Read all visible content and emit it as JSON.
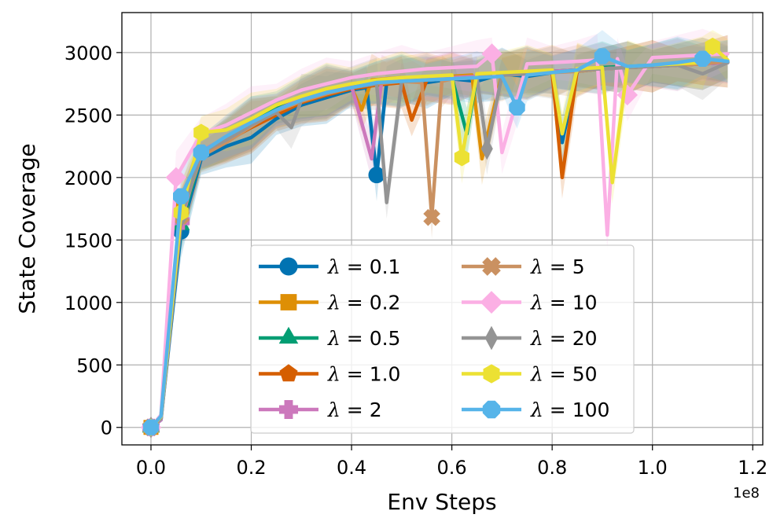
{
  "chart_data": {
    "type": "line",
    "title": "",
    "xlabel": "Env Steps",
    "ylabel": "State Coverage",
    "x_offset_label": "1e8",
    "xlim": [
      -0.058,
      1.22
    ],
    "ylim": [
      -140,
      3320
    ],
    "xticks": [
      0.0,
      0.2,
      0.4,
      0.6,
      0.8,
      1.0,
      1.2
    ],
    "xtick_labels": [
      "0.0",
      "0.2",
      "0.4",
      "0.6",
      "0.8",
      "1.0",
      "1.2"
    ],
    "yticks": [
      0,
      500,
      1000,
      1500,
      2000,
      2500,
      3000
    ],
    "ytick_labels": [
      "0",
      "500",
      "1000",
      "1500",
      "2000",
      "2500",
      "3000"
    ],
    "grid": true,
    "legend_position": "lower-center",
    "series": [
      {
        "name": "λ=0.1",
        "label_prefix": "λ",
        "label_value": "0.1",
        "color": "#0173b2",
        "marker": "circle",
        "x": [
          0.0,
          0.02,
          0.06,
          0.1,
          0.15,
          0.2,
          0.25,
          0.3,
          0.35,
          0.4,
          0.43,
          0.45,
          0.47,
          0.5,
          0.55,
          0.6,
          0.65,
          0.7,
          0.75,
          0.8,
          0.82,
          0.85,
          0.9,
          0.95,
          1.0,
          1.05,
          1.1,
          1.15
        ],
        "y": [
          0,
          60,
          1570,
          2150,
          2250,
          2320,
          2470,
          2580,
          2640,
          2700,
          2720,
          2020,
          2760,
          2780,
          2760,
          2790,
          2770,
          2830,
          2810,
          2840,
          2280,
          2850,
          2870,
          2880,
          2890,
          2900,
          2910,
          2920
        ],
        "marker_x": [
          0.0,
          0.06,
          0.45
        ]
      },
      {
        "name": "λ=0.2",
        "label_prefix": "λ",
        "label_value": "0.2",
        "color": "#de8f05",
        "marker": "square",
        "x": [
          0.0,
          0.02,
          0.06,
          0.1,
          0.15,
          0.2,
          0.25,
          0.3,
          0.35,
          0.4,
          0.42,
          0.44,
          0.47,
          0.5,
          0.55,
          0.6,
          0.64,
          0.66,
          0.7,
          0.75,
          0.8,
          0.85,
          0.9,
          0.95,
          1.0,
          1.05,
          1.1,
          1.15
        ],
        "y": [
          0,
          80,
          1760,
          2200,
          2300,
          2420,
          2520,
          2620,
          2680,
          2720,
          2540,
          2780,
          2790,
          2800,
          2790,
          2810,
          2820,
          2150,
          2830,
          2840,
          2850,
          2860,
          2870,
          2880,
          2890,
          2900,
          2910,
          2930
        ],
        "marker_x": [
          0.0,
          0.06
        ]
      },
      {
        "name": "λ=0.5",
        "label_prefix": "λ",
        "label_value": "0.5",
        "color": "#029e73",
        "marker": "triangle",
        "x": [
          0.0,
          0.02,
          0.06,
          0.1,
          0.15,
          0.2,
          0.25,
          0.3,
          0.35,
          0.4,
          0.45,
          0.5,
          0.55,
          0.6,
          0.63,
          0.65,
          0.7,
          0.75,
          0.8,
          0.85,
          0.9,
          0.95,
          1.0,
          1.05,
          1.1,
          1.15
        ],
        "y": [
          0,
          70,
          1620,
          2180,
          2310,
          2440,
          2560,
          2640,
          2700,
          2730,
          2760,
          2780,
          2790,
          2800,
          2350,
          2810,
          2820,
          2840,
          2850,
          2860,
          2880,
          2890,
          2900,
          2910,
          2920,
          2930
        ],
        "marker_x": [
          0.0,
          0.06
        ]
      },
      {
        "name": "λ=1.0",
        "label_prefix": "λ",
        "label_value": "1.0",
        "color": "#d55e00",
        "marker": "pentagon",
        "x": [
          0.0,
          0.02,
          0.06,
          0.1,
          0.15,
          0.2,
          0.25,
          0.3,
          0.35,
          0.4,
          0.45,
          0.5,
          0.52,
          0.55,
          0.6,
          0.65,
          0.7,
          0.75,
          0.8,
          0.82,
          0.85,
          0.9,
          0.95,
          1.0,
          1.05,
          1.1,
          1.15
        ],
        "y": [
          0,
          90,
          1700,
          2190,
          2290,
          2400,
          2500,
          2600,
          2660,
          2710,
          2740,
          2760,
          2460,
          2780,
          2790,
          2800,
          2820,
          2830,
          2840,
          2000,
          2860,
          2870,
          2880,
          2890,
          2900,
          2910,
          2930
        ],
        "marker_x": [
          0.0,
          0.06
        ]
      },
      {
        "name": "λ=2",
        "label_prefix": "λ",
        "label_value": "2",
        "color": "#cc78bc",
        "marker": "plus",
        "x": [
          0.0,
          0.02,
          0.06,
          0.1,
          0.15,
          0.2,
          0.25,
          0.3,
          0.35,
          0.4,
          0.44,
          0.46,
          0.5,
          0.55,
          0.6,
          0.65,
          0.7,
          0.75,
          0.8,
          0.85,
          0.9,
          0.95,
          1.0,
          1.05,
          1.1,
          1.15
        ],
        "y": [
          0,
          60,
          1650,
          2210,
          2320,
          2430,
          2540,
          2630,
          2690,
          2730,
          2150,
          2770,
          2780,
          2790,
          2800,
          2810,
          2830,
          2840,
          2850,
          2860,
          2870,
          2880,
          2890,
          2900,
          2910,
          2920
        ],
        "marker_x": [
          0.0,
          0.06
        ]
      },
      {
        "name": "λ=5",
        "label_prefix": "λ",
        "label_value": "5",
        "color": "#ca9161",
        "marker": "x",
        "x": [
          0.0,
          0.02,
          0.06,
          0.1,
          0.15,
          0.2,
          0.25,
          0.3,
          0.35,
          0.4,
          0.45,
          0.5,
          0.54,
          0.56,
          0.58,
          0.6,
          0.65,
          0.7,
          0.75,
          0.8,
          0.85,
          0.9,
          0.95,
          1.0,
          1.05,
          1.1,
          1.15
        ],
        "y": [
          0,
          75,
          1690,
          2170,
          2280,
          2410,
          2530,
          2610,
          2670,
          2720,
          2750,
          2770,
          2760,
          1680,
          2770,
          2790,
          2800,
          2820,
          2830,
          2840,
          2850,
          2870,
          2880,
          2890,
          2900,
          2910,
          2930
        ],
        "marker_x": [
          0.0,
          0.06,
          0.56
        ]
      },
      {
        "name": "λ=10",
        "label_prefix": "λ",
        "label_value": "10",
        "color": "#fbafe4",
        "marker": "diamond",
        "x": [
          0.0,
          0.02,
          0.05,
          0.1,
          0.15,
          0.2,
          0.25,
          0.3,
          0.35,
          0.4,
          0.45,
          0.5,
          0.55,
          0.6,
          0.65,
          0.68,
          0.7,
          0.75,
          0.8,
          0.85,
          0.89,
          0.91,
          0.93,
          0.95,
          1.0,
          1.05,
          1.1,
          1.15
        ],
        "y": [
          0,
          100,
          2000,
          2350,
          2420,
          2520,
          2620,
          2700,
          2750,
          2800,
          2830,
          2850,
          2870,
          2880,
          2890,
          2990,
          2200,
          2910,
          2920,
          2930,
          2940,
          1540,
          2950,
          2660,
          2960,
          2970,
          2980,
          2990
        ],
        "marker_x": [
          0.0,
          0.05,
          0.68,
          0.95
        ]
      },
      {
        "name": "λ=20",
        "label_prefix": "λ",
        "label_value": "20",
        "color": "#949494",
        "marker": "thin_diamond",
        "x": [
          0.0,
          0.02,
          0.06,
          0.1,
          0.15,
          0.2,
          0.25,
          0.28,
          0.3,
          0.35,
          0.4,
          0.45,
          0.47,
          0.5,
          0.55,
          0.6,
          0.65,
          0.67,
          0.7,
          0.75,
          0.8,
          0.85,
          0.9,
          0.95,
          1.0,
          1.05,
          1.1,
          1.15
        ],
        "y": [
          0,
          70,
          1680,
          2200,
          2300,
          2420,
          2520,
          2400,
          2620,
          2680,
          2720,
          2750,
          1800,
          2770,
          2780,
          2790,
          2800,
          2230,
          2820,
          2830,
          2840,
          2860,
          2870,
          2880,
          2890,
          2900,
          2830,
          2920
        ],
        "marker_x": [
          0.0,
          0.06,
          0.67
        ]
      },
      {
        "name": "λ=50",
        "label_prefix": "λ",
        "label_value": "50",
        "color": "#ece133",
        "marker": "hexagon",
        "x": [
          0.0,
          0.02,
          0.06,
          0.1,
          0.15,
          0.2,
          0.25,
          0.3,
          0.35,
          0.4,
          0.45,
          0.5,
          0.55,
          0.6,
          0.62,
          0.65,
          0.7,
          0.75,
          0.8,
          0.82,
          0.85,
          0.9,
          0.92,
          0.95,
          1.0,
          1.05,
          1.1,
          1.12,
          1.15
        ],
        "y": [
          0,
          85,
          1720,
          2360,
          2380,
          2470,
          2580,
          2650,
          2710,
          2750,
          2780,
          2800,
          2810,
          2820,
          2160,
          2830,
          2840,
          2850,
          2860,
          2350,
          2870,
          2880,
          1960,
          2890,
          2900,
          2910,
          2920,
          3050,
          2940
        ],
        "marker_x": [
          0.0,
          0.06,
          0.1,
          0.62,
          1.12
        ]
      },
      {
        "name": "λ=100",
        "label_prefix": "λ",
        "label_value": "100",
        "color": "#56b4e9",
        "marker": "octagon",
        "x": [
          0.0,
          0.02,
          0.06,
          0.1,
          0.15,
          0.2,
          0.25,
          0.3,
          0.35,
          0.4,
          0.45,
          0.5,
          0.55,
          0.6,
          0.65,
          0.7,
          0.73,
          0.75,
          0.8,
          0.85,
          0.9,
          0.95,
          1.0,
          1.05,
          1.1,
          1.15
        ],
        "y": [
          0,
          90,
          1850,
          2200,
          2330,
          2440,
          2540,
          2620,
          2680,
          2720,
          2760,
          2770,
          2780,
          2790,
          2800,
          2810,
          2560,
          2820,
          2840,
          2860,
          2970,
          2890,
          2900,
          2920,
          2950,
          2930
        ],
        "marker_x": [
          0.0,
          0.06,
          0.1,
          0.73,
          0.9,
          1.1
        ]
      }
    ]
  }
}
